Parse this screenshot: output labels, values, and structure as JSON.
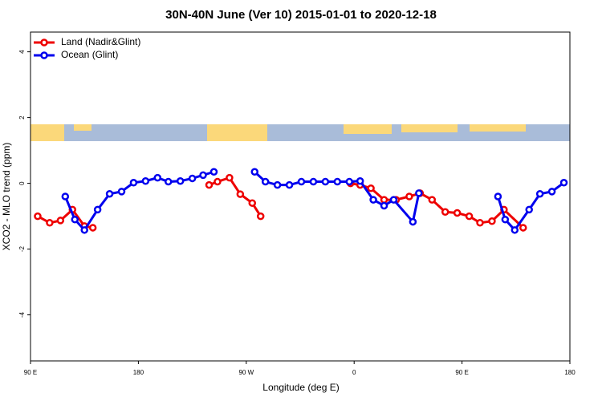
{
  "chart_data": {
    "type": "line",
    "title": "30N-40N June (Ver 10)   2015-01-01 to 2020-12-18",
    "xlabel": "Longitude (deg E)",
    "ylabel": "XCO2 - MLO trend (ppm)",
    "xlim": [
      90,
      540
    ],
    "ylim": [
      -5.4,
      4.6
    ],
    "xticks": [
      {
        "value": 90,
        "label": "90 E"
      },
      180,
      {
        "value": 270,
        "label": "90 W"
      },
      {
        "value": 360,
        "label": "0"
      },
      {
        "value": 450,
        "label": "90 E"
      },
      {
        "value": 540,
        "label": "180"
      }
    ],
    "yticks": [
      -4,
      -2,
      0,
      2,
      4
    ],
    "legend": "top-left",
    "series": [
      {
        "name": "Land (Nadir&Glint)",
        "color": "#ee0000",
        "x": [
          96,
          106,
          115,
          125,
          135,
          142,
          null,
          239,
          246,
          256,
          265,
          275,
          282,
          null,
          357,
          365,
          374,
          385,
          395,
          406,
          415,
          425,
          436,
          446,
          456,
          465,
          475,
          485,
          501
        ],
        "values": [
          -1.0,
          -1.2,
          -1.13,
          -0.8,
          -1.3,
          -1.35,
          null,
          -0.05,
          0.05,
          0.17,
          -0.33,
          -0.6,
          -1.0,
          null,
          0.0,
          -0.05,
          -0.15,
          -0.5,
          -0.5,
          -0.4,
          -0.3,
          -0.5,
          -0.87,
          -0.9,
          -1.0,
          -1.2,
          -1.15,
          -0.8,
          -1.35
        ]
      },
      {
        "name": "Ocean (Glint)",
        "color": "#0000ee",
        "x": [
          119,
          127,
          135,
          146,
          156,
          166,
          176,
          186,
          196,
          205,
          215,
          225,
          234,
          243,
          null,
          277,
          286,
          296,
          306,
          316,
          326,
          336,
          346,
          356,
          365,
          376,
          385,
          393,
          409,
          414,
          null,
          480,
          486,
          494,
          506,
          515,
          525,
          535
        ],
        "values": [
          -0.4,
          -1.1,
          -1.42,
          -0.8,
          -0.32,
          -0.25,
          0.02,
          0.07,
          0.17,
          0.05,
          0.07,
          0.15,
          0.25,
          0.35,
          null,
          0.35,
          0.05,
          -0.05,
          -0.05,
          0.05,
          0.05,
          0.05,
          0.05,
          0.05,
          0.07,
          -0.5,
          -0.68,
          -0.5,
          -1.17,
          -0.3,
          null,
          -0.4,
          -1.1,
          -1.42,
          -0.8,
          -0.32,
          -0.25,
          0.02
        ]
      }
    ]
  }
}
